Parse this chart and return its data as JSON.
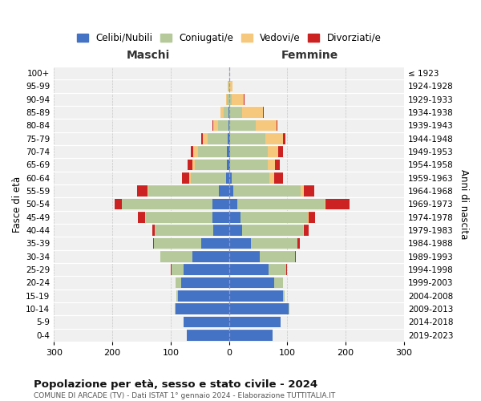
{
  "age_groups": [
    "0-4",
    "5-9",
    "10-14",
    "15-19",
    "20-24",
    "25-29",
    "30-34",
    "35-39",
    "40-44",
    "45-49",
    "50-54",
    "55-59",
    "60-64",
    "65-69",
    "70-74",
    "75-79",
    "80-84",
    "85-89",
    "90-94",
    "95-99",
    "100+"
  ],
  "birth_years": [
    "2019-2023",
    "2014-2018",
    "2009-2013",
    "2004-2008",
    "1999-2003",
    "1994-1998",
    "1989-1993",
    "1984-1988",
    "1979-1983",
    "1974-1978",
    "1969-1973",
    "1964-1968",
    "1959-1963",
    "1954-1958",
    "1949-1953",
    "1944-1948",
    "1939-1943",
    "1934-1938",
    "1929-1933",
    "1924-1928",
    "≤ 1923"
  ],
  "maschi": {
    "celibi": [
      72,
      78,
      92,
      88,
      82,
      78,
      62,
      48,
      27,
      28,
      28,
      18,
      5,
      3,
      3,
      2,
      1,
      1,
      0,
      0,
      0
    ],
    "coniugati": [
      0,
      0,
      1,
      2,
      10,
      20,
      55,
      80,
      100,
      115,
      155,
      120,
      60,
      55,
      50,
      35,
      18,
      8,
      3,
      1,
      0
    ],
    "vedovi": [
      0,
      0,
      0,
      0,
      0,
      0,
      0,
      0,
      0,
      1,
      1,
      2,
      3,
      5,
      8,
      8,
      8,
      5,
      2,
      1,
      0
    ],
    "divorziati": [
      0,
      0,
      0,
      0,
      0,
      2,
      1,
      2,
      5,
      12,
      12,
      18,
      12,
      8,
      5,
      2,
      1,
      0,
      0,
      0,
      0
    ]
  },
  "femmine": {
    "nubili": [
      75,
      88,
      102,
      93,
      78,
      68,
      53,
      38,
      22,
      20,
      14,
      8,
      4,
      2,
      2,
      2,
      1,
      1,
      0,
      0,
      0
    ],
    "coniugate": [
      0,
      0,
      1,
      3,
      15,
      30,
      60,
      80,
      105,
      115,
      150,
      115,
      65,
      65,
      65,
      60,
      45,
      22,
      5,
      1,
      0
    ],
    "vedove": [
      0,
      0,
      0,
      0,
      0,
      0,
      0,
      0,
      1,
      1,
      2,
      5,
      8,
      12,
      18,
      30,
      35,
      35,
      20,
      5,
      0
    ],
    "divorziate": [
      0,
      0,
      0,
      0,
      0,
      2,
      2,
      3,
      8,
      12,
      40,
      18,
      15,
      8,
      8,
      5,
      2,
      1,
      1,
      0,
      0
    ]
  },
  "colors": {
    "celibi": "#4472c4",
    "coniugati": "#b5c99a",
    "vedovi": "#f5c87d",
    "divorziati": "#cc2222"
  },
  "xlim": 300,
  "title": "Popolazione per età, sesso e stato civile - 2024",
  "subtitle": "COMUNE DI ARCADE (TV) - Dati ISTAT 1° gennaio 2024 - Elaborazione TUTTITALIA.IT",
  "ylabel_left": "Fasce di età",
  "ylabel_right": "Anni di nascita",
  "xlabel_left": "Maschi",
  "xlabel_right": "Femmine",
  "legend_labels": [
    "Celibi/Nubili",
    "Coniugati/e",
    "Vedovi/e",
    "Divorziati/e"
  ],
  "bg_color": "#f0f0f0",
  "fig_color": "#ffffff"
}
